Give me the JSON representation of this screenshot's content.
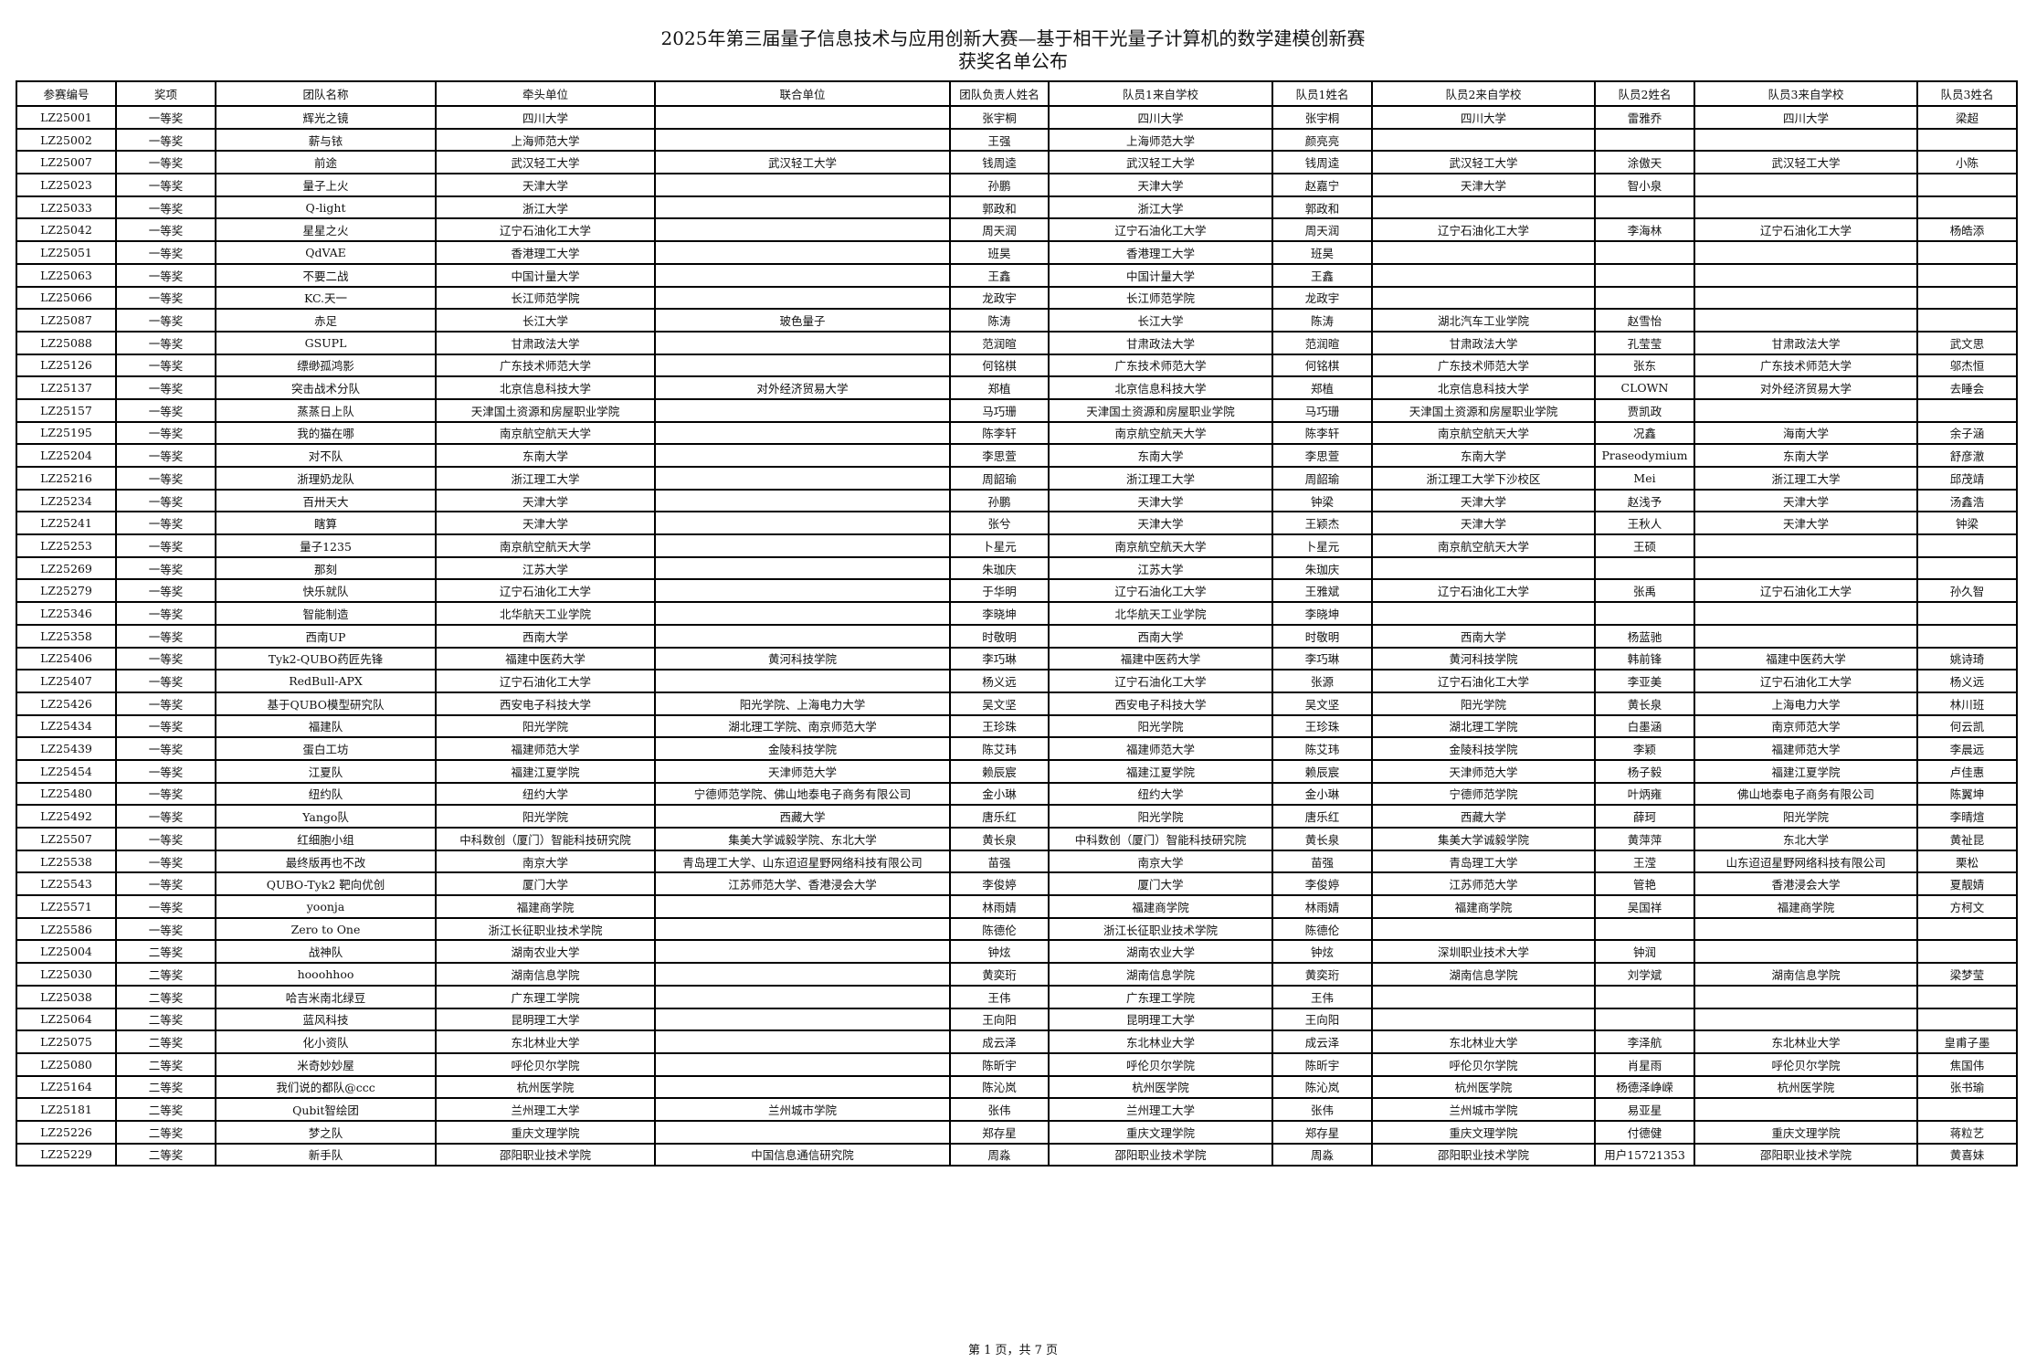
{
  "document": {
    "title": "2025年第三届量子信息技术与应用创新大赛—基于相干光量子计算机的数学建模创新赛",
    "subtitle": "获奖名单公布",
    "footer": "第 1 页，共 7 页"
  },
  "table": {
    "headers": [
      "参赛编号",
      "奖项",
      "团队名称",
      "牵头单位",
      "联合单位",
      "团队负责人姓名",
      "队员1来自学校",
      "队员1姓名",
      "队员2来自学校",
      "队员2姓名",
      "队员3来自学校",
      "队员3姓名"
    ],
    "rows": [
      [
        "LZ25001",
        "一等奖",
        "辉光之镜",
        "四川大学",
        "",
        "张宇桐",
        "四川大学",
        "张宇桐",
        "四川大学",
        "雷雅乔",
        "四川大学",
        "梁超"
      ],
      [
        "LZ25002",
        "一等奖",
        "薪与铱",
        "上海师范大学",
        "",
        "王强",
        "上海师范大学",
        "颜亮亮",
        "",
        "",
        "",
        ""
      ],
      [
        "LZ25007",
        "一等奖",
        "前途",
        "武汉轻工大学",
        "武汉轻工大学",
        "钱周逵",
        "武汉轻工大学",
        "钱周逵",
        "武汉轻工大学",
        "涂傲天",
        "武汉轻工大学",
        "小陈"
      ],
      [
        "LZ25023",
        "一等奖",
        "量子上火",
        "天津大学",
        "",
        "孙鹏",
        "天津大学",
        "赵嘉宁",
        "天津大学",
        "智小泉",
        "",
        ""
      ],
      [
        "LZ25033",
        "一等奖",
        "Q-light",
        "浙江大学",
        "",
        "郭政和",
        "浙江大学",
        "郭政和",
        "",
        "",
        "",
        ""
      ],
      [
        "LZ25042",
        "一等奖",
        "星星之火",
        "辽宁石油化工大学",
        "",
        "周天润",
        "辽宁石油化工大学",
        "周天润",
        "辽宁石油化工大学",
        "李海林",
        "辽宁石油化工大学",
        "杨皓添"
      ],
      [
        "LZ25051",
        "一等奖",
        "QdVAE",
        "香港理工大学",
        "",
        "班昊",
        "香港理工大学",
        "班昊",
        "",
        "",
        "",
        ""
      ],
      [
        "LZ25063",
        "一等奖",
        "不要二战",
        "中国计量大学",
        "",
        "王鑫",
        "中国计量大学",
        "王鑫",
        "",
        "",
        "",
        ""
      ],
      [
        "LZ25066",
        "一等奖",
        "KC.天一",
        "长江师范学院",
        "",
        "龙政宇",
        "长江师范学院",
        "龙政宇",
        "",
        "",
        "",
        ""
      ],
      [
        "LZ25087",
        "一等奖",
        "赤足",
        "长江大学",
        "玻色量子",
        "陈涛",
        "长江大学",
        "陈涛",
        "湖北汽车工业学院",
        "赵雪怡",
        "",
        ""
      ],
      [
        "LZ25088",
        "一等奖",
        "GSUPL",
        "甘肃政法大学",
        "",
        "范润暄",
        "甘肃政法大学",
        "范润暄",
        "甘肃政法大学",
        "孔莹莹",
        "甘肃政法大学",
        "武文思"
      ],
      [
        "LZ25126",
        "一等奖",
        "缥缈孤鸿影",
        "广东技术师范大学",
        "",
        "何铭棋",
        "广东技术师范大学",
        "何铭棋",
        "广东技术师范大学",
        "张东",
        "广东技术师范大学",
        "邬杰恒"
      ],
      [
        "LZ25137",
        "一等奖",
        "突击战术分队",
        "北京信息科技大学",
        "对外经济贸易大学",
        "郑植",
        "北京信息科技大学",
        "郑植",
        "北京信息科技大学",
        "CLOWN",
        "对外经济贸易大学",
        "去睡会"
      ],
      [
        "LZ25157",
        "一等奖",
        "蒸蒸日上队",
        "天津国土资源和房屋职业学院",
        "",
        "马巧珊",
        "天津国土资源和房屋职业学院",
        "马巧珊",
        "天津国土资源和房屋职业学院",
        "贾凯政",
        "",
        ""
      ],
      [
        "LZ25195",
        "一等奖",
        "我的猫在哪",
        "南京航空航天大学",
        "",
        "陈李轩",
        "南京航空航天大学",
        "陈李轩",
        "南京航空航天大学",
        "况鑫",
        "海南大学",
        "余子涵"
      ],
      [
        "LZ25204",
        "一等奖",
        "对不队",
        "东南大学",
        "",
        "李思萱",
        "东南大学",
        "李思萱",
        "东南大学",
        "Praseodymium",
        "东南大学",
        "舒彦澈"
      ],
      [
        "LZ25216",
        "一等奖",
        "浙理奶龙队",
        "浙江理工大学",
        "",
        "周韶瑜",
        "浙江理工大学",
        "周韶瑜",
        "浙江理工大学下沙校区",
        "Mei",
        "浙江理工大学",
        "邱茂靖"
      ],
      [
        "LZ25234",
        "一等奖",
        "百卅天大",
        "天津大学",
        "",
        "孙鹏",
        "天津大学",
        "钟梁",
        "天津大学",
        "赵浅予",
        "天津大学",
        "汤鑫浩"
      ],
      [
        "LZ25241",
        "一等奖",
        "瞎算",
        "天津大学",
        "",
        "张兮",
        "天津大学",
        "王颖杰",
        "天津大学",
        "王秋人",
        "天津大学",
        "钟梁"
      ],
      [
        "LZ25253",
        "一等奖",
        "量子1235",
        "南京航空航天大学",
        "",
        "卜星元",
        "南京航空航天大学",
        "卜星元",
        "南京航空航天大学",
        "王硕",
        "",
        ""
      ],
      [
        "LZ25269",
        "一等奖",
        "那刻",
        "江苏大学",
        "",
        "朱珈庆",
        "江苏大学",
        "朱珈庆",
        "",
        "",
        "",
        ""
      ],
      [
        "LZ25279",
        "一等奖",
        "快乐就队",
        "辽宁石油化工大学",
        "",
        "于华明",
        "辽宁石油化工大学",
        "王雅斌",
        "辽宁石油化工大学",
        "张禹",
        "辽宁石油化工大学",
        "孙久智"
      ],
      [
        "LZ25346",
        "一等奖",
        "智能制造",
        "北华航天工业学院",
        "",
        "李晓坤",
        "北华航天工业学院",
        "李晓坤",
        "",
        "",
        "",
        ""
      ],
      [
        "LZ25358",
        "一等奖",
        "西南UP",
        "西南大学",
        "",
        "时敬明",
        "西南大学",
        "时敬明",
        "西南大学",
        "杨蓝驰",
        "",
        ""
      ],
      [
        "LZ25406",
        "一等奖",
        "Tyk2-QUBO药匠先锋",
        "福建中医药大学",
        "黄河科技学院",
        "李巧琳",
        "福建中医药大学",
        "李巧琳",
        "黄河科技学院",
        "韩前锋",
        "福建中医药大学",
        "姚诗琦"
      ],
      [
        "LZ25407",
        "一等奖",
        "RedBull-APX",
        "辽宁石油化工大学",
        "",
        "杨义远",
        "辽宁石油化工大学",
        "张源",
        "辽宁石油化工大学",
        "李亚美",
        "辽宁石油化工大学",
        "杨义远"
      ],
      [
        "LZ25426",
        "一等奖",
        "基于QUBO模型研究队",
        "西安电子科技大学",
        "阳光学院、上海电力大学",
        "吴文坚",
        "西安电子科技大学",
        "吴文坚",
        "阳光学院",
        "黄长泉",
        "上海电力大学",
        "林川班"
      ],
      [
        "LZ25434",
        "一等奖",
        "福建队",
        "阳光学院",
        "湖北理工学院、南京师范大学",
        "王珍珠",
        "阳光学院",
        "王珍珠",
        "湖北理工学院",
        "白墨涵",
        "南京师范大学",
        "何云凯"
      ],
      [
        "LZ25439",
        "一等奖",
        "蛋白工坊",
        "福建师范大学",
        "金陵科技学院",
        "陈艾玮",
        "福建师范大学",
        "陈艾玮",
        "金陵科技学院",
        "李颖",
        "福建师范大学",
        "李晨远"
      ],
      [
        "LZ25454",
        "一等奖",
        "江夏队",
        "福建江夏学院",
        "天津师范大学",
        "赖辰宸",
        "福建江夏学院",
        "赖辰宸",
        "天津师范大学",
        "杨子毅",
        "福建江夏学院",
        "卢佳惠"
      ],
      [
        "LZ25480",
        "一等奖",
        "纽约队",
        "纽约大学",
        "宁德师范学院、佛山地泰电子商务有限公司",
        "金小琳",
        "纽约大学",
        "金小琳",
        "宁德师范学院",
        "叶炳雍",
        "佛山地泰电子商务有限公司",
        "陈翼坤"
      ],
      [
        "LZ25492",
        "一等奖",
        "Yango队",
        "阳光学院",
        "西藏大学",
        "唐乐红",
        "阳光学院",
        "唐乐红",
        "西藏大学",
        "薛珂",
        "阳光学院",
        "李晴煊"
      ],
      [
        "LZ25507",
        "一等奖",
        "红细胞小组",
        "中科数创（厦门）智能科技研究院",
        "集美大学诚毅学院、东北大学",
        "黄长泉",
        "中科数创（厦门）智能科技研究院",
        "黄长泉",
        "集美大学诚毅学院",
        "黄萍萍",
        "东北大学",
        "黄祉昆"
      ],
      [
        "LZ25538",
        "一等奖",
        "最终版再也不改",
        "南京大学",
        "青岛理工大学、山东迢迢星野网络科技有限公司",
        "苗强",
        "南京大学",
        "苗强",
        "青岛理工大学",
        "王滢",
        "山东迢迢星野网络科技有限公司",
        "栗松"
      ],
      [
        "LZ25543",
        "一等奖",
        "QUBO-Tyk2 靶向优创",
        "厦门大学",
        "江苏师范大学、香港浸会大学",
        "李俊婷",
        "厦门大学",
        "李俊婷",
        "江苏师范大学",
        "管艳",
        "香港浸会大学",
        "夏靓婧"
      ],
      [
        "LZ25571",
        "一等奖",
        "yoonja",
        "福建商学院",
        "",
        "林雨婧",
        "福建商学院",
        "林雨婧",
        "福建商学院",
        "吴国祥",
        "福建商学院",
        "方柯文"
      ],
      [
        "LZ25586",
        "一等奖",
        "Zero  to One",
        "浙江长征职业技术学院",
        "",
        "陈德伦",
        "浙江长征职业技术学院",
        "陈德伦",
        "",
        "",
        "",
        ""
      ],
      [
        "LZ25004",
        "二等奖",
        "战神队",
        "湖南农业大学",
        "",
        "钟炫",
        "湖南农业大学",
        "钟炫",
        "深圳职业技术大学",
        "钟润",
        "",
        ""
      ],
      [
        "LZ25030",
        "二等奖",
        "hooohhoo",
        "湖南信息学院",
        "",
        "黄奕珩",
        "湖南信息学院",
        "黄奕珩",
        "湖南信息学院",
        "刘学斌",
        "湖南信息学院",
        "梁梦莹"
      ],
      [
        "LZ25038",
        "二等奖",
        "哈吉米南北绿豆",
        "广东理工学院",
        "",
        "王伟",
        "广东理工学院",
        "王伟",
        "",
        "",
        "",
        ""
      ],
      [
        "LZ25064",
        "二等奖",
        "蓝风科技",
        "昆明理工大学",
        "",
        "王向阳",
        "昆明理工大学",
        "王向阳",
        "",
        "",
        "",
        ""
      ],
      [
        "LZ25075",
        "二等奖",
        "化小资队",
        "东北林业大学",
        "",
        "成云泽",
        "东北林业大学",
        "成云泽",
        "东北林业大学",
        "李泽航",
        "东北林业大学",
        "皇甫子墨"
      ],
      [
        "LZ25080",
        "二等奖",
        "米奇妙妙屋",
        "呼伦贝尔学院",
        "",
        "陈昕宇",
        "呼伦贝尔学院",
        "陈昕宇",
        "呼伦贝尔学院",
        "肖星雨",
        "呼伦贝尔学院",
        "焦国伟"
      ],
      [
        "LZ25164",
        "二等奖",
        "我们说的都队@ccc",
        "杭州医学院",
        "",
        "陈沁岚",
        "杭州医学院",
        "陈沁岚",
        "杭州医学院",
        "杨德泽峥嵘",
        "杭州医学院",
        "张书瑜"
      ],
      [
        "LZ25181",
        "二等奖",
        "Qubit智绘团",
        "兰州理工大学",
        "兰州城市学院",
        "张伟",
        "兰州理工大学",
        "张伟",
        "兰州城市学院",
        "易亚星",
        "",
        ""
      ],
      [
        "LZ25226",
        "二等奖",
        "梦之队",
        "重庆文理学院",
        "",
        "郑存星",
        "重庆文理学院",
        "郑存星",
        "重庆文理学院",
        "付德健",
        "重庆文理学院",
        "蒋粒艺"
      ],
      [
        "LZ25229",
        "二等奖",
        "新手队",
        "邵阳职业技术学院",
        "中国信息通信研究院",
        "周淼",
        "邵阳职业技术学院",
        "周淼",
        "邵阳职业技术学院",
        "用户15721353",
        "邵阳职业技术学院",
        "黄喜妹"
      ]
    ]
  }
}
